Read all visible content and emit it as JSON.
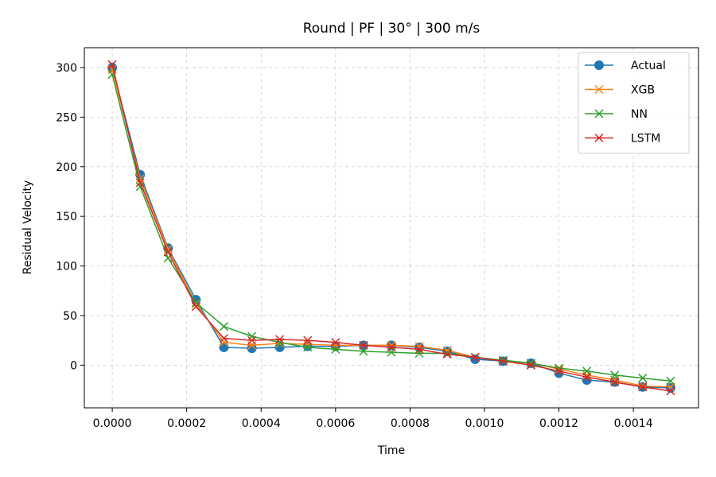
{
  "chart_data": {
    "type": "line",
    "title": "Round | PF | 30° | 300 m/s",
    "xlabel": "Time",
    "ylabel": "Residual Velocity",
    "xlim": [
      -7.5e-05,
      0.001575
    ],
    "ylim": [
      -43,
      320
    ],
    "grid": true,
    "legend_position": "top-right",
    "x_ticks": [
      {
        "value": 0.0,
        "label": "0.0000"
      },
      {
        "value": 0.0002,
        "label": "0.0002"
      },
      {
        "value": 0.0004,
        "label": "0.0004"
      },
      {
        "value": 0.0006,
        "label": "0.0006"
      },
      {
        "value": 0.0008,
        "label": "0.0008"
      },
      {
        "value": 0.001,
        "label": "0.0010"
      },
      {
        "value": 0.0012,
        "label": "0.0012"
      },
      {
        "value": 0.0014,
        "label": "0.0014"
      }
    ],
    "y_ticks": [
      {
        "value": 0,
        "label": "0"
      },
      {
        "value": 50,
        "label": "50"
      },
      {
        "value": 100,
        "label": "100"
      },
      {
        "value": 150,
        "label": "150"
      },
      {
        "value": 200,
        "label": "200"
      },
      {
        "value": 250,
        "label": "250"
      },
      {
        "value": 300,
        "label": "300"
      }
    ],
    "x": [
      0.0,
      7.5e-05,
      0.00015,
      0.000225,
      0.0003,
      0.000375,
      0.00045,
      0.000525,
      0.0006,
      0.000675,
      0.00075,
      0.000825,
      0.0009,
      0.000975,
      0.00105,
      0.001125,
      0.0012,
      0.001275,
      0.00135,
      0.001425,
      0.0015
    ],
    "series": [
      {
        "name": "Actual",
        "color": "#1f77b4",
        "marker": "circle",
        "values": [
          300,
          192,
          118,
          66,
          18,
          17,
          18,
          19,
          19,
          20,
          20,
          18,
          14,
          6,
          4,
          2,
          -8,
          -15,
          -17,
          -22,
          -23
        ]
      },
      {
        "name": "XGB",
        "color": "#ff7f0e",
        "marker": "x",
        "values": [
          298,
          188,
          117,
          62,
          23,
          20,
          22,
          21,
          20,
          20,
          20,
          19,
          15,
          8,
          4,
          2,
          -4,
          -10,
          -15,
          -21,
          -22
        ]
      },
      {
        "name": "NN",
        "color": "#2ca02c",
        "marker": "x",
        "values": [
          293,
          180,
          108,
          63,
          39,
          29,
          23,
          18,
          16,
          14,
          13,
          12,
          12,
          8,
          5,
          2,
          -3,
          -6,
          -10,
          -13,
          -16
        ]
      },
      {
        "name": "LSTM",
        "color": "#d62728",
        "marker": "x",
        "values": [
          303,
          184,
          114,
          59,
          27,
          25,
          26,
          25,
          23,
          20,
          18,
          16,
          11,
          8,
          4,
          0,
          -6,
          -12,
          -17,
          -22,
          -26
        ]
      }
    ]
  }
}
